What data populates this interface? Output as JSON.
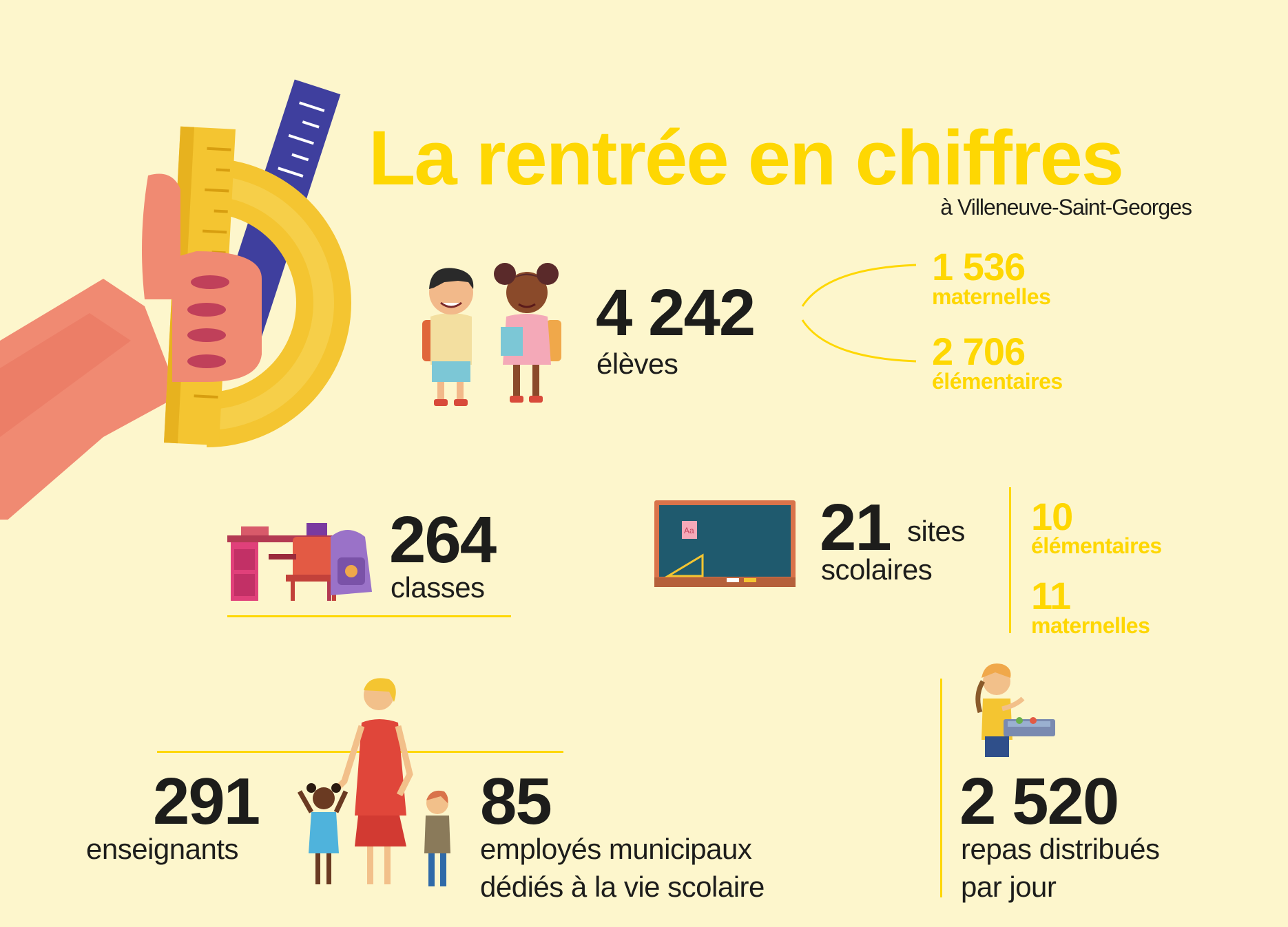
{
  "header": {
    "title": "La rentrée en chiffres",
    "subtitle": "à Villeneuve-Saint-Georges"
  },
  "eleves": {
    "value": "4 242",
    "label": "élèves",
    "breakdown": [
      {
        "value": "1 536",
        "label": "maternelles"
      },
      {
        "value": "2 706",
        "label": "élémentaires"
      }
    ]
  },
  "classes": {
    "value": "264",
    "label": "classes"
  },
  "sites": {
    "value": "21",
    "label_line1": "sites",
    "label_line2": "scolaires",
    "breakdown": [
      {
        "value": "10",
        "label": "élémentaires"
      },
      {
        "value": "11",
        "label": "maternelles"
      }
    ]
  },
  "enseignants": {
    "value": "291",
    "label": "enseignants"
  },
  "employes": {
    "value": "85",
    "label_line1": "employés municipaux",
    "label_line2": "dédiés à la vie scolaire"
  },
  "repas": {
    "value": "2 520",
    "label_line1": "repas distribués",
    "label_line2": "par jour"
  },
  "colors": {
    "background": "#fdf6cc",
    "accent_yellow": "#fed702",
    "text_dark": "#1d1d1b"
  },
  "icons": [
    "hand-ruler-protractor-illustration",
    "children-backpacks-illustration",
    "school-desk-illustration",
    "blackboard-illustration",
    "teacher-children-illustration",
    "child-lunch-tray-illustration"
  ]
}
